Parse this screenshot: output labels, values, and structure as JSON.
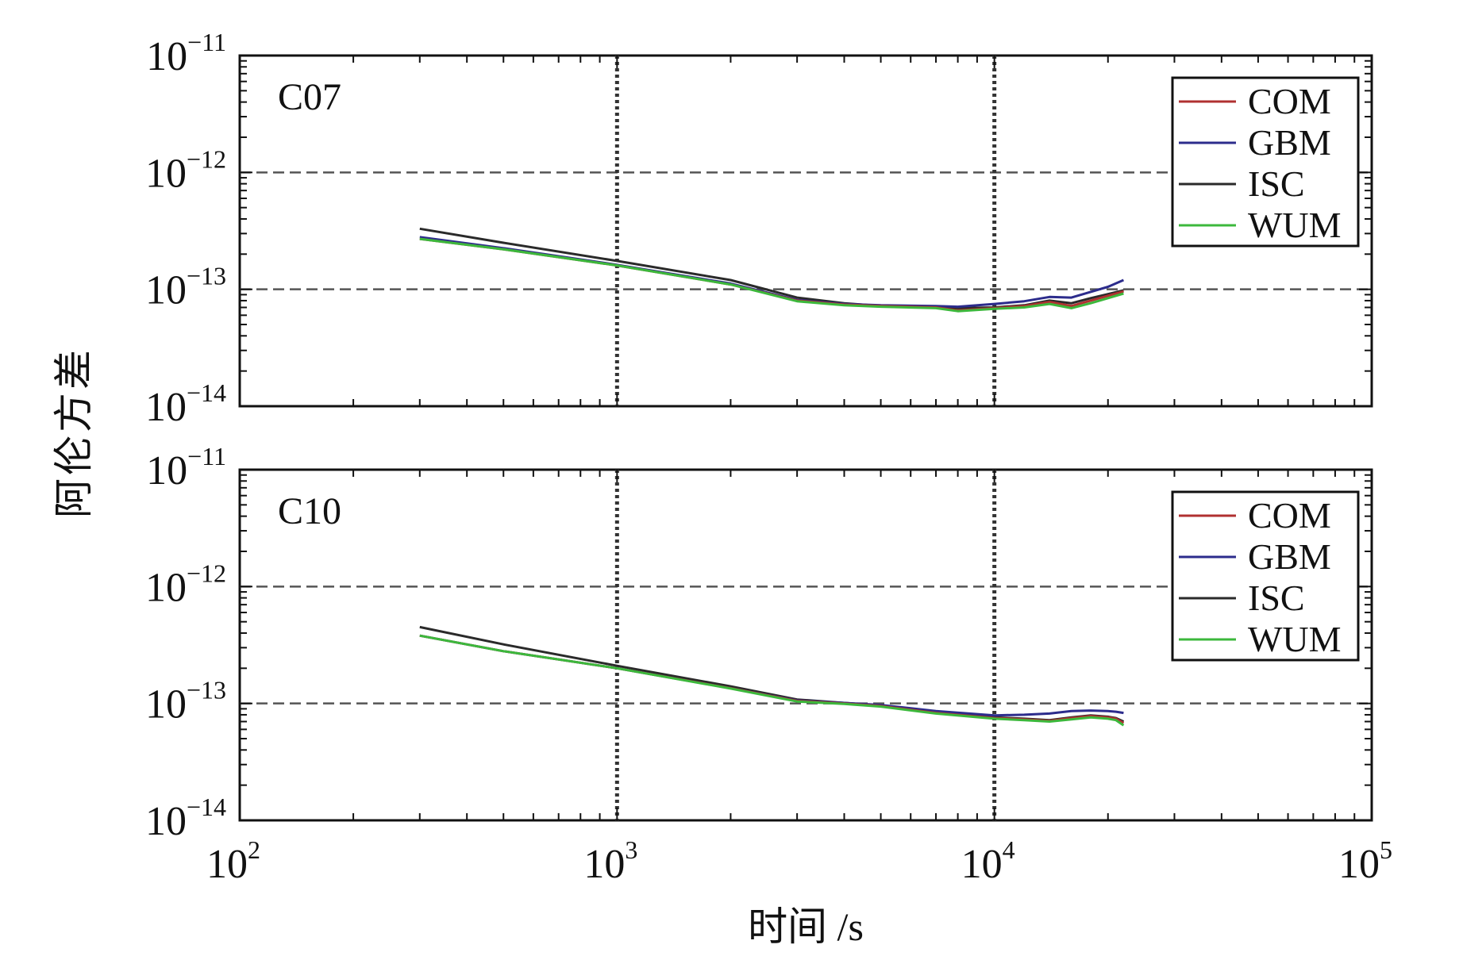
{
  "chart_data": {
    "type": "line",
    "xlabel": "时间 /s",
    "ylabel": "阿伦方差",
    "x_scale": "log",
    "y_scale": "log",
    "xlim": [
      100,
      100000
    ],
    "ylim": [
      1e-14,
      1e-11
    ],
    "x_ticks": [
      {
        "base": "10",
        "exp": "2"
      },
      {
        "base": "10",
        "exp": "3"
      },
      {
        "base": "10",
        "exp": "4"
      },
      {
        "base": "10",
        "exp": "5"
      }
    ],
    "y_ticks": [
      {
        "base": "10",
        "exp": "−11"
      },
      {
        "base": "10",
        "exp": "−12"
      },
      {
        "base": "10",
        "exp": "−13"
      },
      {
        "base": "10",
        "exp": "−14"
      }
    ],
    "colors": {
      "COM": "#b03030",
      "GBM": "#2c2c8c",
      "ISC": "#2a2a2a",
      "WUM": "#3cb83c"
    },
    "panels": [
      {
        "title": "C07",
        "legend": [
          "COM",
          "GBM",
          "ISC",
          "WUM"
        ],
        "legend_position": "top-right",
        "series": [
          {
            "name": "COM",
            "x": [
              300,
              500,
              1000,
              2000,
              3000,
              4000,
              5000,
              7000,
              8000,
              10000,
              12000,
              14000,
              16000,
              18000,
              20000,
              22000
            ],
            "y": [
              2.7e-13,
              2.2e-13,
              1.6e-13,
              1.1e-13,
              8e-14,
              7.4e-14,
              7.2e-14,
              7e-14,
              6.6e-14,
              6.9e-14,
              7.2e-14,
              7.8e-14,
              7.2e-14,
              8e-14,
              8.8e-14,
              9.6e-14
            ]
          },
          {
            "name": "GBM",
            "x": [
              300,
              500,
              1000,
              2000,
              3000,
              4000,
              5000,
              7000,
              8000,
              10000,
              12000,
              14000,
              16000,
              18000,
              20000,
              22000
            ],
            "y": [
              2.8e-13,
              2.25e-13,
              1.62e-13,
              1.12e-13,
              8.1e-14,
              7.5e-14,
              7.3e-14,
              7.2e-14,
              7.1e-14,
              7.5e-14,
              7.9e-14,
              8.6e-14,
              8.5e-14,
              9.5e-14,
              1.05e-13,
              1.2e-13
            ]
          },
          {
            "name": "ISC",
            "x": [
              300,
              500,
              1000,
              2000,
              3000,
              4000,
              5000,
              7000,
              8000,
              10000,
              12000,
              14000,
              16000,
              18000,
              20000,
              22000
            ],
            "y": [
              3.3e-13,
              2.5e-13,
              1.75e-13,
              1.2e-13,
              8.5e-14,
              7.6e-14,
              7.2e-14,
              7.1e-14,
              6.9e-14,
              7e-14,
              7.3e-14,
              8e-14,
              7.6e-14,
              8.4e-14,
              9.1e-14,
              9.8e-14
            ]
          },
          {
            "name": "WUM",
            "x": [
              300,
              500,
              1000,
              2000,
              3000,
              4000,
              5000,
              7000,
              8000,
              10000,
              12000,
              14000,
              16000,
              18000,
              20000,
              22000
            ],
            "y": [
              2.7e-13,
              2.2e-13,
              1.6e-13,
              1.1e-13,
              7.9e-14,
              7.3e-14,
              7.1e-14,
              6.9e-14,
              6.5e-14,
              6.8e-14,
              7e-14,
              7.5e-14,
              6.9e-14,
              7.6e-14,
              8.4e-14,
              9.2e-14
            ]
          }
        ]
      },
      {
        "title": "C10",
        "legend": [
          "COM",
          "GBM",
          "ISC",
          "WUM"
        ],
        "legend_position": "top-right",
        "series": [
          {
            "name": "COM",
            "x": [
              300,
              500,
              1000,
              2000,
              3000,
              4000,
              5000,
              7000,
              10000,
              12000,
              14000,
              16000,
              18000,
              20000,
              21000,
              22000
            ],
            "y": [
              3.8e-13,
              2.8e-13,
              2e-13,
              1.35e-13,
              1.05e-13,
              1e-13,
              9.5e-14,
              8.3e-14,
              7.5e-14,
              7.3e-14,
              7.1e-14,
              7.5e-14,
              7.8e-14,
              7.6e-14,
              7.4e-14,
              6.8e-14
            ]
          },
          {
            "name": "GBM",
            "x": [
              300,
              500,
              1000,
              2000,
              3000,
              4000,
              5000,
              7000,
              10000,
              12000,
              14000,
              16000,
              18000,
              20000,
              21000,
              22000
            ],
            "y": [
              3.8e-13,
              2.8e-13,
              2e-13,
              1.35e-13,
              1.06e-13,
              1.01e-13,
              9.7e-14,
              8.6e-14,
              7.9e-14,
              8e-14,
              8.2e-14,
              8.6e-14,
              8.7e-14,
              8.6e-14,
              8.5e-14,
              8.3e-14
            ]
          },
          {
            "name": "ISC",
            "x": [
              300,
              500,
              1000,
              2000,
              3000,
              4000,
              5000,
              7000,
              10000,
              12000,
              14000,
              16000,
              18000,
              20000,
              21000,
              22000
            ],
            "y": [
              4.5e-13,
              3.2e-13,
              2.1e-13,
              1.4e-13,
              1.08e-13,
              1.01e-13,
              9.6e-14,
              8.4e-14,
              7.6e-14,
              7.4e-14,
              7.2e-14,
              7.6e-14,
              7.9e-14,
              7.7e-14,
              7.5e-14,
              7e-14
            ]
          },
          {
            "name": "WUM",
            "x": [
              300,
              500,
              1000,
              2000,
              3000,
              4000,
              5000,
              7000,
              10000,
              12000,
              14000,
              16000,
              18000,
              20000,
              21000,
              22000
            ],
            "y": [
              3.8e-13,
              2.8e-13,
              2e-13,
              1.34e-13,
              1.04e-13,
              9.9e-14,
              9.4e-14,
              8.2e-14,
              7.4e-14,
              7.2e-14,
              7e-14,
              7.3e-14,
              7.6e-14,
              7.4e-14,
              7.2e-14,
              6.5e-14
            ]
          }
        ]
      }
    ]
  }
}
